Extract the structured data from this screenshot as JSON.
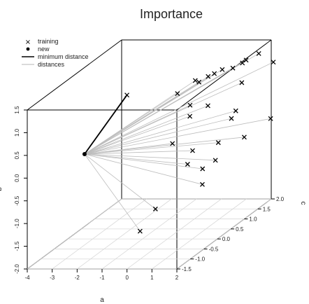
{
  "chart_data": {
    "type": "scatter",
    "title": "Importance",
    "xlabel": "a",
    "ylabel": "c",
    "zlabel": "b",
    "xlim": [
      -4,
      2
    ],
    "ylim": [
      -1.5,
      2.0
    ],
    "zlim": [
      -2.0,
      1.5
    ],
    "x_ticks": [
      "-4",
      "-3",
      "-2",
      "-1",
      "0",
      "1",
      "2"
    ],
    "y_ticks": [
      "-1.5",
      "-1.0",
      "-0.5",
      "0.0",
      "0.5",
      "1.0",
      "1.5",
      "2.0"
    ],
    "z_ticks": [
      "-2.0",
      "-1.5",
      "-1.0",
      "-0.5",
      "0.0",
      "0.5",
      "1.0",
      "1.5"
    ],
    "legend": {
      "position": "top-left",
      "entries": [
        "training",
        "new",
        "minimum distance",
        "distances"
      ]
    },
    "new_point": {
      "x": -3.0,
      "y": -0.3,
      "z": 0.0
    },
    "training": [
      {
        "x": -1.3,
        "y": -0.3,
        "z": 1.3
      },
      {
        "x": 0.4,
        "y": 0.0,
        "z": 1.2
      },
      {
        "x": 0.4,
        "y": 0.8,
        "z": 1.1
      },
      {
        "x": 0.9,
        "y": 0.2,
        "z": 1.4
      },
      {
        "x": 1.2,
        "y": 0.4,
        "z": 1.4
      },
      {
        "x": 0.8,
        "y": 1.0,
        "z": 1.2
      },
      {
        "x": 0.9,
        "y": 1.2,
        "z": 1.2
      },
      {
        "x": 1.0,
        "y": 1.5,
        "z": 1.1
      },
      {
        "x": 1.1,
        "y": 1.9,
        "z": 1.1
      },
      {
        "x": 1.6,
        "y": 1.3,
        "z": 1.3
      },
      {
        "x": 1.5,
        "y": 2.0,
        "z": 1.2
      },
      {
        "x": 0.8,
        "y": 0.1,
        "z": 0.9
      },
      {
        "x": 0.9,
        "y": 0.0,
        "z": 0.7
      },
      {
        "x": 1.3,
        "y": 0.3,
        "z": 0.8
      },
      {
        "x": 1.9,
        "y": 1.0,
        "z": 1.0
      },
      {
        "x": 2.2,
        "y": 0.5,
        "z": 0.6
      },
      {
        "x": 2.3,
        "y": 1.8,
        "z": 1.1
      },
      {
        "x": 0.2,
        "y": 0.0,
        "z": 0.1
      },
      {
        "x": 1.7,
        "y": 0.8,
        "z": 0.3
      },
      {
        "x": 0.9,
        "y": 0.1,
        "z": -0.1
      },
      {
        "x": 1.5,
        "y": 0.5,
        "z": -0.1
      },
      {
        "x": 2.3,
        "y": 1.7,
        "z": -0.1
      },
      {
        "x": 2.0,
        "y": 1.0,
        "z": -0.2
      },
      {
        "x": 0.7,
        "y": 0.1,
        "z": -0.4
      },
      {
        "x": 1.6,
        "y": 0.3,
        "z": -0.4
      },
      {
        "x": 1.3,
        "y": 0.1,
        "z": -0.5
      },
      {
        "x": 1.4,
        "y": 0.0,
        "z": -0.8
      },
      {
        "x": 0.6,
        "y": -1.0,
        "z": -0.9
      },
      {
        "x": 0.2,
        "y": -1.2,
        "z": -1.3
      }
    ],
    "min_distance_index": 0,
    "grid": false
  }
}
